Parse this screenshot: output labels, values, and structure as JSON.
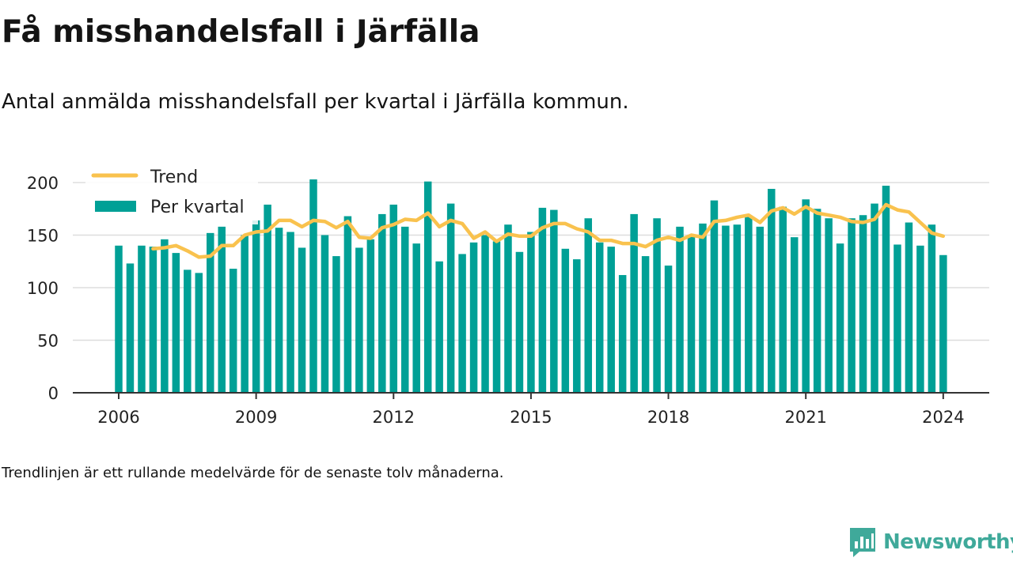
{
  "header": {
    "title": "Få misshandelsfall i Järfälla",
    "subtitle": "Antal anmälda misshandelsfall per kvartal i Järfälla kommun."
  },
  "footer": {
    "note": "Trendlinjen är ett rullande medelvärde för de senaste tolv månaderna.",
    "brand": "Newsworthy"
  },
  "colors": {
    "bars": "#00a096",
    "trend": "#f9c24e",
    "axis": "#333333",
    "grid": "#dddddd",
    "brand": "#3fa99a"
  },
  "chart_data": {
    "type": "bar",
    "x_unit": "quarter",
    "x_start": "2006 Q1",
    "x_tick_labels": [
      "2006",
      "2009",
      "2012",
      "2015",
      "2018",
      "2021",
      "2024"
    ],
    "y_tick_labels": [
      "0",
      "50",
      "100",
      "150",
      "200"
    ],
    "ylim": [
      0,
      200
    ],
    "grid": true,
    "legend_position": "top-left",
    "series": [
      {
        "name": "Per kvartal",
        "type": "bar",
        "values": [
          140,
          123,
          140,
          139,
          146,
          133,
          117,
          114,
          152,
          158,
          118,
          150,
          164,
          179,
          157,
          153,
          138,
          203,
          150,
          130,
          168,
          138,
          146,
          170,
          179,
          158,
          142,
          201,
          125,
          180,
          132,
          143,
          150,
          144,
          160,
          134,
          153,
          176,
          174,
          137,
          127,
          166,
          143,
          139,
          112,
          170,
          130,
          166,
          121,
          158,
          150,
          161,
          183,
          159,
          160,
          168,
          158,
          194,
          177,
          148,
          184,
          175,
          166,
          142,
          166,
          169,
          180,
          197,
          141,
          162,
          140,
          160,
          131
        ]
      },
      {
        "name": "Trend",
        "type": "line",
        "values": [
          null,
          null,
          null,
          137,
          138,
          140,
          135,
          129,
          130,
          140,
          140,
          150,
          153,
          154,
          164,
          164,
          158,
          164,
          163,
          157,
          163,
          148,
          147,
          157,
          160,
          165,
          164,
          171,
          158,
          164,
          161,
          147,
          153,
          144,
          151,
          149,
          149,
          157,
          161,
          161,
          156,
          153,
          145,
          145,
          142,
          142,
          139,
          145,
          148,
          145,
          150,
          148,
          163,
          164,
          167,
          169,
          162,
          173,
          176,
          170,
          177,
          171,
          169,
          167,
          163,
          162,
          165,
          179,
          174,
          172,
          162,
          152,
          149
        ]
      }
    ]
  }
}
